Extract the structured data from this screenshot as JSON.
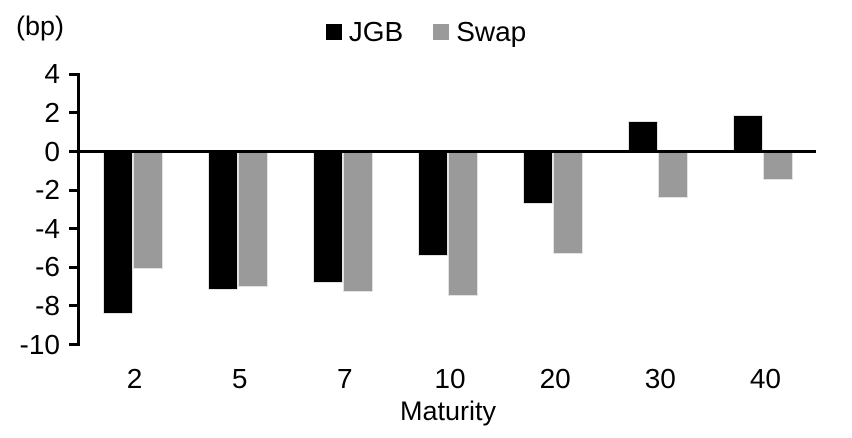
{
  "unit_label": "(bp)",
  "chart_data": {
    "type": "bar",
    "title": "",
    "xlabel": "Maturity",
    "ylabel": "(bp)",
    "categories": [
      "2",
      "5",
      "7",
      "10",
      "20",
      "30",
      "40"
    ],
    "series": [
      {
        "name": "JGB",
        "color": "#000000",
        "values": [
          -8.4,
          -7.2,
          -6.8,
          -5.4,
          -2.7,
          1.6,
          1.9
        ]
      },
      {
        "name": "Swap",
        "color": "#9a9a9a",
        "values": [
          -6.1,
          -7.0,
          -7.3,
          -7.5,
          -5.3,
          -2.4,
          -1.5
        ]
      }
    ],
    "ylim": [
      -10,
      4
    ],
    "yticks": [
      4,
      2,
      0,
      -2,
      -4,
      -6,
      -8,
      -10
    ],
    "legend_position": "top",
    "grid": false
  }
}
